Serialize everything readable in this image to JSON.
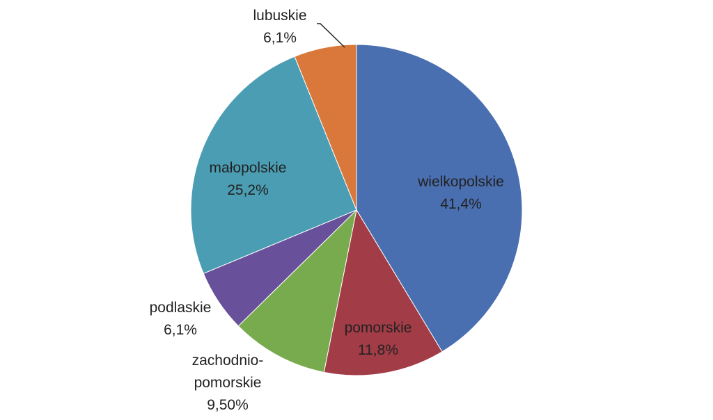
{
  "chart_data": {
    "type": "pie",
    "slices": [
      {
        "name": "wielkopolskie",
        "value": 41.4,
        "label_lines": [
          "wielkopolskie",
          "41,4%"
        ],
        "color": "#4A6FB0"
      },
      {
        "name": "pomorskie",
        "value": 11.8,
        "label_lines": [
          "pomorskie",
          "11,8%"
        ],
        "color": "#A23C46"
      },
      {
        "name": "zachodnio-pomorskie",
        "value": 9.5,
        "label_lines": [
          "zachodnio-",
          "pomorskie",
          "9,50%"
        ],
        "color": "#78AB4E"
      },
      {
        "name": "podlaskie",
        "value": 6.1,
        "label_lines": [
          "podlaskie",
          "6,1%"
        ],
        "color": "#68519A"
      },
      {
        "name": "małopolskie",
        "value": 25.2,
        "label_lines": [
          "małopolskie",
          "25,2%"
        ],
        "color": "#4B9DB3"
      },
      {
        "name": "lubuskie",
        "value": 6.1,
        "label_lines": [
          "lubuskie",
          "6,1%"
        ],
        "color": "#D9783A"
      }
    ],
    "start_angle": "12 o'clock",
    "direction": "clockwise",
    "legend": "none"
  }
}
